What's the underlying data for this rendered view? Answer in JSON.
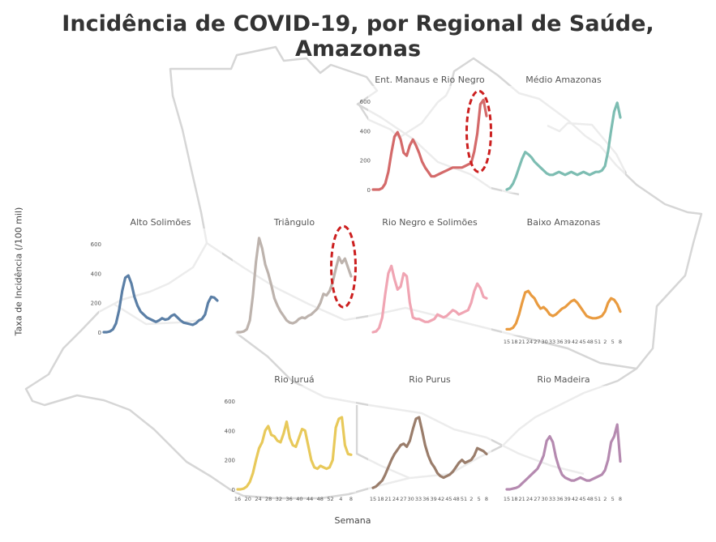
{
  "title": "Incidência de COVID-19, por Regional de Saúde, Amazonas",
  "chart_data": {
    "type": "line",
    "ylabel": "Taxa de Incidência (/100 mil)",
    "xlabel": "Semana",
    "ylim": [
      0,
      650
    ],
    "yticks": [
      0,
      200,
      400,
      600
    ],
    "x_tick_labels": [
      "15",
      "18",
      "21",
      "24",
      "27",
      "30",
      "33",
      "36",
      "39",
      "42",
      "45",
      "48",
      "51",
      "2",
      "5",
      "8"
    ],
    "x_tick_labels_juru": [
      "16",
      "20",
      "24",
      "28",
      "32",
      "36",
      "40",
      "44",
      "48",
      "52",
      "4",
      "8"
    ],
    "panels": [
      {
        "name": "Ent. Manaus e Rio Negro",
        "color": "#d46a6a",
        "highlight": true,
        "yaxis": true,
        "xaxis": false,
        "values": [
          0,
          0,
          0,
          10,
          40,
          120,
          250,
          360,
          390,
          340,
          250,
          230,
          300,
          340,
          300,
          250,
          190,
          150,
          120,
          90,
          90,
          100,
          110,
          120,
          130,
          140,
          150,
          150,
          150,
          150,
          160,
          170,
          180,
          260,
          380,
          580,
          610,
          500
        ]
      },
      {
        "name": "Médio Amazonas",
        "color": "#7dbdb2",
        "highlight": false,
        "yaxis": false,
        "xaxis": false,
        "values": [
          0,
          10,
          40,
          90,
          150,
          210,
          255,
          240,
          220,
          190,
          170,
          150,
          130,
          110,
          100,
          100,
          110,
          120,
          110,
          100,
          110,
          120,
          110,
          100,
          110,
          120,
          110,
          100,
          110,
          120,
          120,
          130,
          160,
          260,
          400,
          530,
          590,
          490
        ]
      },
      {
        "name": "Alto Solimões",
        "color": "#5b7fa6",
        "highlight": false,
        "yaxis": true,
        "xaxis": false,
        "values": [
          0,
          0,
          5,
          20,
          60,
          150,
          280,
          370,
          385,
          330,
          240,
          180,
          140,
          120,
          100,
          90,
          80,
          70,
          80,
          95,
          85,
          90,
          110,
          120,
          100,
          80,
          65,
          60,
          55,
          50,
          60,
          80,
          90,
          120,
          200,
          240,
          235,
          215
        ]
      },
      {
        "name": "Triângulo",
        "color": "#bdb3ad",
        "highlight": true,
        "yaxis": false,
        "xaxis": false,
        "values": [
          0,
          0,
          5,
          20,
          80,
          250,
          480,
          640,
          570,
          460,
          400,
          320,
          230,
          180,
          140,
          110,
          80,
          65,
          60,
          70,
          90,
          100,
          95,
          110,
          120,
          140,
          160,
          200,
          260,
          250,
          280,
          340,
          430,
          510,
          470,
          500,
          440,
          380
        ]
      },
      {
        "name": "Rio Negro e Solimões",
        "color": "#f0a5b3",
        "highlight": false,
        "yaxis": false,
        "xaxis": false,
        "values": [
          0,
          5,
          30,
          100,
          260,
          400,
          450,
          360,
          290,
          310,
          400,
          380,
          200,
          100,
          90,
          90,
          80,
          70,
          70,
          80,
          90,
          120,
          110,
          100,
          110,
          130,
          150,
          140,
          120,
          130,
          140,
          150,
          200,
          280,
          330,
          300,
          240,
          230
        ]
      },
      {
        "name": "Baixo Amazonas",
        "color": "#e99b40",
        "highlight": false,
        "yaxis": false,
        "xaxis": true,
        "values": [
          20,
          20,
          30,
          60,
          120,
          200,
          270,
          280,
          250,
          230,
          190,
          160,
          170,
          150,
          120,
          110,
          120,
          140,
          160,
          170,
          190,
          210,
          220,
          200,
          170,
          140,
          110,
          100,
          95,
          95,
          100,
          110,
          140,
          200,
          230,
          220,
          190,
          140
        ]
      },
      {
        "name": "Rio Juruá",
        "color": "#e8c95a",
        "highlight": false,
        "yaxis": true,
        "xaxis": true,
        "values": [
          0,
          0,
          5,
          20,
          50,
          110,
          200,
          280,
          320,
          400,
          430,
          370,
          360,
          330,
          320,
          380,
          460,
          350,
          300,
          290,
          350,
          410,
          400,
          300,
          200,
          150,
          140,
          160,
          150,
          140,
          150,
          200,
          420,
          480,
          490,
          300,
          240,
          235
        ]
      },
      {
        "name": "Rio Purus",
        "color": "#9a7d6b",
        "highlight": false,
        "yaxis": false,
        "xaxis": true,
        "values": [
          10,
          20,
          40,
          60,
          100,
          150,
          200,
          240,
          270,
          300,
          310,
          290,
          330,
          410,
          480,
          490,
          400,
          300,
          230,
          180,
          150,
          110,
          90,
          80,
          90,
          100,
          120,
          150,
          180,
          200,
          180,
          190,
          200,
          230,
          280,
          270,
          260,
          240
        ]
      },
      {
        "name": "Rio Madeira",
        "color": "#b58ab0",
        "highlight": false,
        "yaxis": false,
        "xaxis": true,
        "values": [
          0,
          0,
          5,
          10,
          20,
          40,
          60,
          80,
          100,
          120,
          140,
          180,
          230,
          330,
          360,
          320,
          220,
          150,
          100,
          80,
          70,
          60,
          60,
          70,
          80,
          70,
          60,
          60,
          70,
          80,
          90,
          100,
          130,
          200,
          320,
          360,
          440,
          190
        ]
      }
    ]
  }
}
